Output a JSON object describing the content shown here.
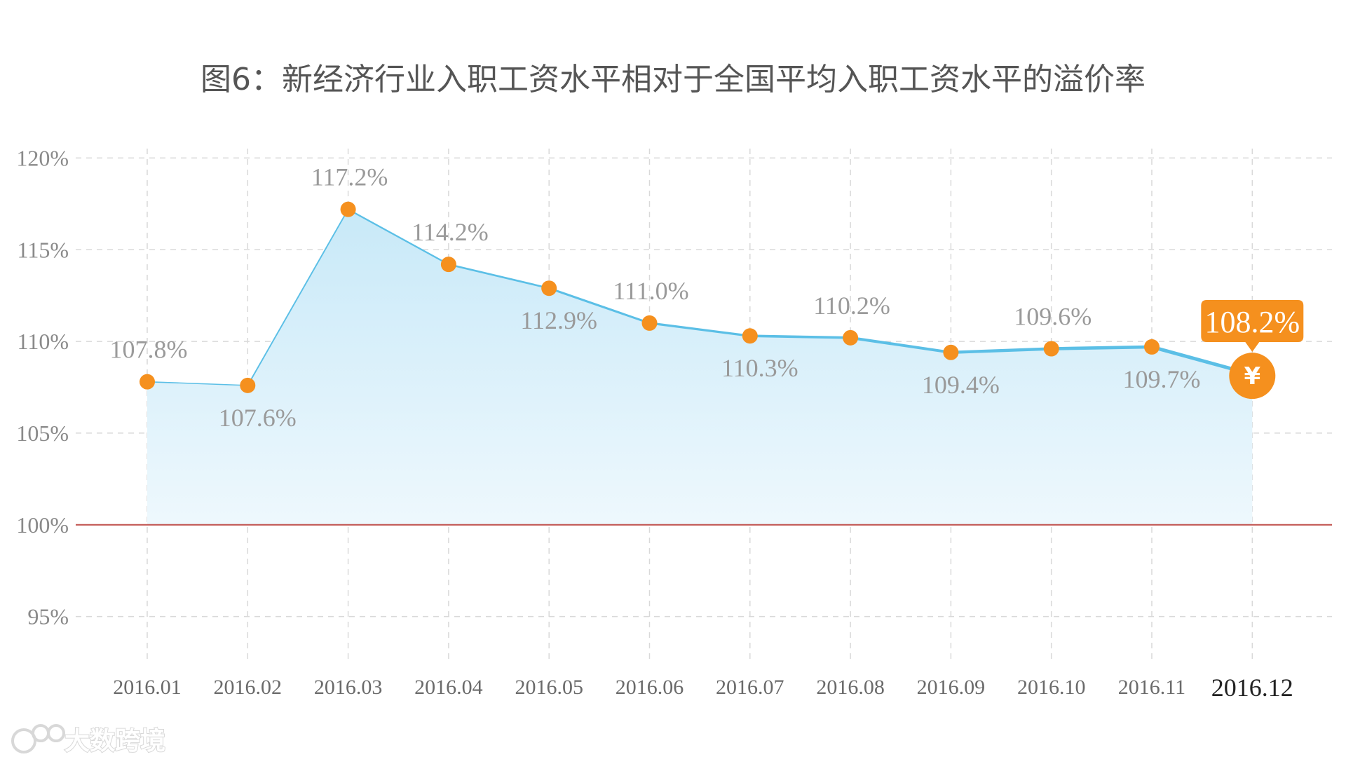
{
  "colors": {
    "line": "#5bbfe6",
    "marker": "#f5901e",
    "fill_top": "#c8e9f8",
    "fill_bottom": "#eef8fd",
    "baseline": "#c0504d",
    "grid": "#d9d9d9"
  },
  "watermark": {
    "text": "大数跨境",
    "icon": "brand-logo-icon"
  },
  "callout": {
    "label": "108.2%",
    "icon_glyph": "¥",
    "icon": "yen-icon"
  },
  "chart_data": {
    "type": "line",
    "title": "图6：新经济行业入职工资水平相对于全国平均入职工资水平的溢价率",
    "xlabel": "",
    "ylabel": "",
    "categories": [
      "2016.01",
      "2016.02",
      "2016.03",
      "2016.04",
      "2016.05",
      "2016.06",
      "2016.07",
      "2016.08",
      "2016.09",
      "2016.10",
      "2016.11",
      "2016.12"
    ],
    "values": [
      107.8,
      107.6,
      117.2,
      114.2,
      112.9,
      111.0,
      110.3,
      110.2,
      109.4,
      109.6,
      109.7,
      108.2
    ],
    "data_labels": [
      "107.8%",
      "107.6%",
      "117.2%",
      "114.2%",
      "112.9%",
      "111.0%",
      "110.3%",
      "110.2%",
      "109.4%",
      "109.6%",
      "109.7%",
      "108.2%"
    ],
    "label_placement": [
      "above",
      "below",
      "above",
      "above",
      "below",
      "above",
      "below",
      "above",
      "below",
      "above",
      "below",
      "callout"
    ],
    "yticks": [
      95,
      100,
      105,
      110,
      115,
      120
    ],
    "ytick_labels": [
      "95%",
      "100%",
      "105%",
      "110%",
      "115%",
      "120%"
    ],
    "ylim": [
      92.5,
      122.5
    ],
    "baseline": 100,
    "grid": true,
    "grid_style": "dashed",
    "area_fill": true,
    "legend": "none"
  }
}
